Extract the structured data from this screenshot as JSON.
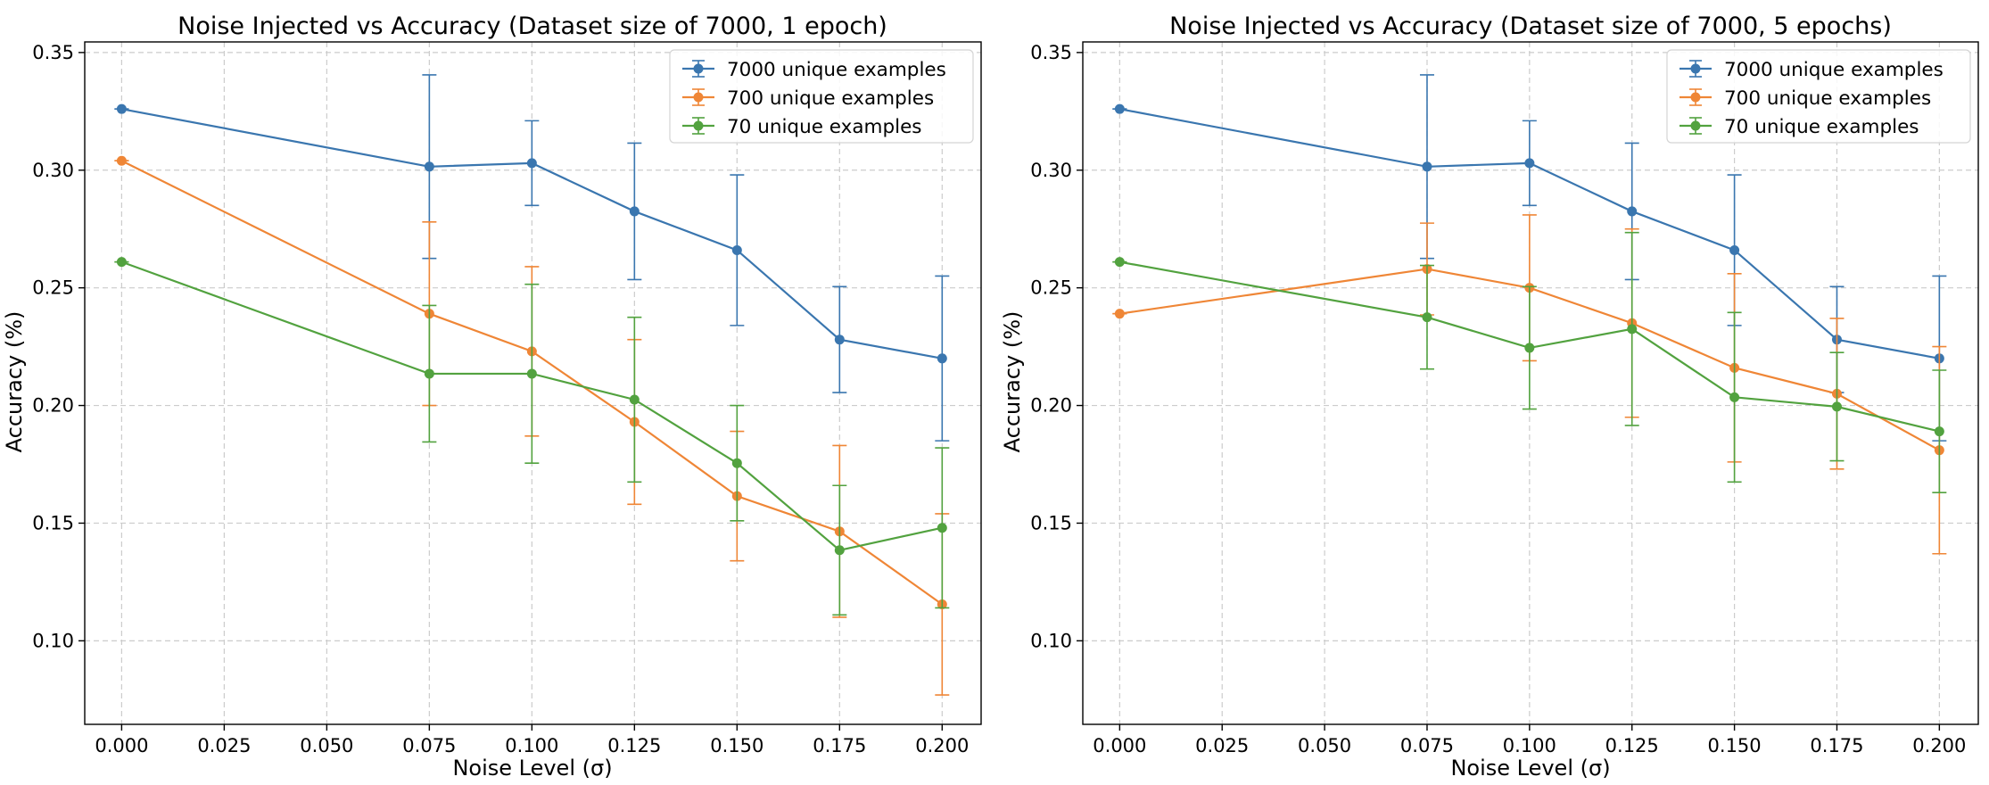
{
  "chart_data": [
    {
      "type": "line",
      "title": "Noise Injected vs Accuracy (Dataset size of 7000, 1 epoch)",
      "xlabel": "Noise Level (σ)",
      "ylabel": "Accuracy (%)",
      "xlim": [
        -0.009,
        0.2095
      ],
      "ylim": [
        0.0645,
        0.3545
      ],
      "xticks": [
        "0.000",
        "0.025",
        "0.050",
        "0.075",
        "0.100",
        "0.125",
        "0.150",
        "0.175",
        "0.200"
      ],
      "yticks": [
        "0.10",
        "0.15",
        "0.20",
        "0.25",
        "0.30",
        "0.35"
      ],
      "grid": true,
      "legend_position": "top-right",
      "x": [
        0.0,
        0.075,
        0.1,
        0.125,
        0.15,
        0.175,
        0.2
      ],
      "series": [
        {
          "name": "7000 unique examples",
          "color": "#3a76af",
          "values": [
            0.326,
            0.3015,
            0.303,
            0.2825,
            0.266,
            0.228,
            0.22
          ],
          "errors": [
            0.0,
            0.039,
            0.018,
            0.029,
            0.032,
            0.0225,
            0.035
          ]
        },
        {
          "name": "700 unique examples",
          "color": "#ef8636",
          "values": [
            0.304,
            0.239,
            0.223,
            0.193,
            0.1615,
            0.1465,
            0.1155
          ],
          "errors": [
            0.0,
            0.039,
            0.036,
            0.035,
            0.0275,
            0.0365,
            0.0385
          ]
        },
        {
          "name": "70 unique examples",
          "color": "#52a23f",
          "values": [
            0.261,
            0.2135,
            0.2135,
            0.2025,
            0.1755,
            0.1385,
            0.148
          ],
          "errors": [
            0.0,
            0.029,
            0.038,
            0.035,
            0.0245,
            0.0275,
            0.034
          ]
        }
      ]
    },
    {
      "type": "line",
      "title": "Noise Injected vs Accuracy (Dataset size of 7000, 5 epochs)",
      "xlabel": "Noise Level (σ)",
      "ylabel": "Accuracy (%)",
      "xlim": [
        -0.009,
        0.2095
      ],
      "ylim": [
        0.0645,
        0.3545
      ],
      "xticks": [
        "0.000",
        "0.025",
        "0.050",
        "0.075",
        "0.100",
        "0.125",
        "0.150",
        "0.175",
        "0.200"
      ],
      "yticks": [
        "0.10",
        "0.15",
        "0.20",
        "0.25",
        "0.30",
        "0.35"
      ],
      "grid": true,
      "legend_position": "top-right",
      "x": [
        0.0,
        0.075,
        0.1,
        0.125,
        0.15,
        0.175,
        0.2
      ],
      "series": [
        {
          "name": "7000 unique examples",
          "color": "#3a76af",
          "values": [
            0.326,
            0.3015,
            0.303,
            0.2825,
            0.266,
            0.228,
            0.22
          ],
          "errors": [
            0.0,
            0.039,
            0.018,
            0.029,
            0.032,
            0.0225,
            0.035
          ]
        },
        {
          "name": "700 unique examples",
          "color": "#ef8636",
          "values": [
            0.239,
            0.258,
            0.25,
            0.235,
            0.216,
            0.205,
            0.181
          ],
          "errors": [
            0.0,
            0.0195,
            0.031,
            0.04,
            0.04,
            0.032,
            0.044
          ]
        },
        {
          "name": "70 unique examples",
          "color": "#52a23f",
          "values": [
            0.261,
            0.2375,
            0.2245,
            0.2325,
            0.2035,
            0.1995,
            0.189
          ],
          "errors": [
            0.0,
            0.022,
            0.026,
            0.041,
            0.036,
            0.023,
            0.026
          ]
        }
      ]
    }
  ]
}
